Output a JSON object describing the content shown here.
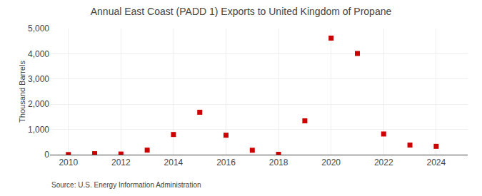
{
  "chart_data": {
    "type": "scatter",
    "title": "Annual East Coast (PADD 1) Exports to United Kingdom of Propane",
    "y_label": "Thousand Barrels",
    "annotations": [
      "Source: U.S. Energy Information Administration"
    ],
    "x": [
      2010,
      2011,
      2012,
      2013,
      2014,
      2015,
      2016,
      2017,
      2018,
      2019,
      2020,
      2021,
      2022,
      2023,
      2024
    ],
    "values": [
      5,
      40,
      25,
      180,
      800,
      1680,
      770,
      175,
      15,
      1340,
      4620,
      4010,
      820,
      380,
      330
    ],
    "color": "#cc0000",
    "marker": "square",
    "xlim": [
      2009.3,
      2025.2
    ],
    "xticks": [
      2010,
      2012,
      2014,
      2016,
      2018,
      2020,
      2022,
      2024
    ],
    "ylim": [
      0,
      5000
    ],
    "yticks": [
      0,
      {
        "value": 1000,
        "label": "1,000"
      },
      {
        "value": 2000,
        "label": "2,000"
      },
      {
        "value": 3000,
        "label": "3,000"
      },
      {
        "value": 4000,
        "label": "4,000"
      },
      {
        "value": 5000,
        "label": "5,000"
      }
    ],
    "grid": true
  }
}
